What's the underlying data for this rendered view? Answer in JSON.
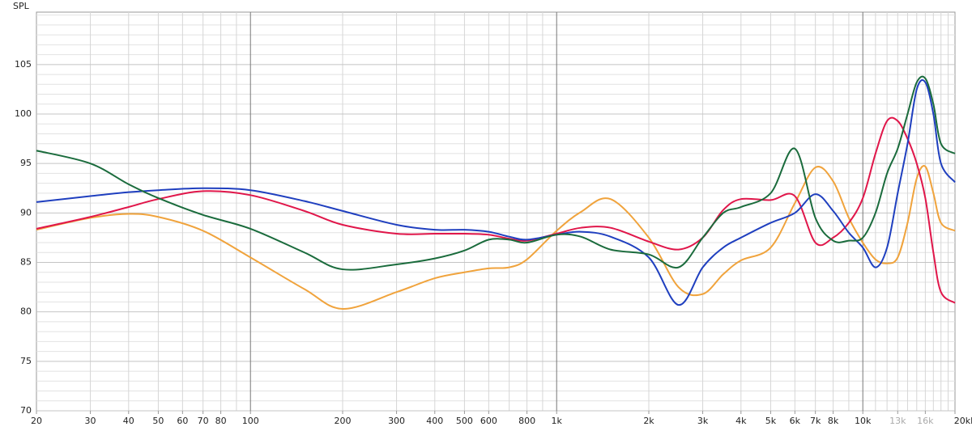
{
  "chart_data": {
    "type": "line",
    "y_label": "SPL",
    "x_log": true,
    "xlim": [
      20,
      20000
    ],
    "ylim": [
      70,
      110.3
    ],
    "xticks": [
      20,
      30,
      40,
      50,
      60,
      70,
      80,
      100,
      200,
      300,
      400,
      500,
      600,
      800,
      {
        "value": 1000,
        "label": "1k"
      },
      {
        "value": 2000,
        "label": "2k"
      },
      {
        "value": 3000,
        "label": "3k"
      },
      {
        "value": 4000,
        "label": "4k"
      },
      {
        "value": 5000,
        "label": "5k"
      },
      {
        "value": 6000,
        "label": "6k"
      },
      {
        "value": 7000,
        "label": "7k"
      },
      {
        "value": 8000,
        "label": "8k"
      },
      {
        "value": 10000,
        "label": "10k"
      },
      {
        "value": 13000,
        "label": "13k",
        "color": "#aaaaaa"
      },
      {
        "value": 16000,
        "label": "16k",
        "color": "#aaaaaa"
      },
      {
        "value": 20000,
        "label": "20kHz"
      }
    ],
    "xmajor": [
      100,
      1000,
      10000
    ],
    "xminor": [
      30,
      40,
      50,
      60,
      70,
      80,
      90,
      200,
      300,
      400,
      500,
      600,
      700,
      800,
      900,
      2000,
      3000,
      4000,
      5000,
      6000,
      7000,
      8000,
      9000,
      11000,
      12000,
      13000,
      14000,
      15000,
      16000,
      17000,
      18000,
      19000
    ],
    "yticks": [
      70,
      75,
      80,
      85,
      90,
      95,
      100,
      105
    ],
    "yminor": [
      71,
      72,
      73,
      74,
      76,
      77,
      78,
      79,
      81,
      82,
      83,
      84,
      86,
      87,
      88,
      89,
      91,
      92,
      93,
      94,
      96,
      97,
      98,
      99,
      101,
      102,
      103,
      104,
      106,
      107,
      108,
      109,
      110
    ],
    "grid": true,
    "x": [
      20,
      30,
      40,
      50,
      70,
      100,
      150,
      200,
      300,
      400,
      500,
      600,
      700,
      800,
      1000,
      1200,
      1500,
      2000,
      2500,
      3000,
      3500,
      4000,
      5000,
      6000,
      7000,
      8000,
      9000,
      10000,
      11000,
      12000,
      13000,
      14000,
      15000,
      16000,
      17000,
      18000,
      20000
    ],
    "series": [
      {
        "color": "#f0a33c",
        "values": [
          88.3,
          89.5,
          89.9,
          89.6,
          88.2,
          85.5,
          82.3,
          80.3,
          82,
          83.4,
          84.0,
          84.4,
          84.5,
          85.3,
          88.2,
          90.1,
          91.4,
          87.5,
          82.5,
          81.8,
          83.8,
          85.2,
          86.5,
          91,
          94.6,
          93.2,
          89.5,
          87,
          85.3,
          84.9,
          85.5,
          89,
          93.5,
          94.7,
          92,
          89,
          88.2
        ]
      },
      {
        "color": "#e0164a",
        "values": [
          88.4,
          89.6,
          90.6,
          91.4,
          92.2,
          91.8,
          90.2,
          88.8,
          87.9,
          87.9,
          87.9,
          87.8,
          87.4,
          87.2,
          87.9,
          88.5,
          88.5,
          87.1,
          86.3,
          87.5,
          90.3,
          91.4,
          91.3,
          91.7,
          87,
          87.5,
          89,
          91.5,
          96,
          99.3,
          99.3,
          97.5,
          95,
          91.5,
          86,
          82,
          80.9
        ]
      },
      {
        "color": "#1f3fbf",
        "values": [
          91.1,
          91.7,
          92.1,
          92.3,
          92.5,
          92.3,
          91.2,
          90.2,
          88.8,
          88.3,
          88.3,
          88.1,
          87.6,
          87.3,
          87.8,
          88.1,
          87.6,
          85.5,
          80.7,
          84.5,
          86.5,
          87.5,
          89,
          90,
          91.9,
          90.2,
          88,
          86.5,
          84.5,
          86.5,
          92,
          97,
          102.5,
          103.2,
          100,
          95,
          93.1
        ]
      },
      {
        "color": "#1a6b3c",
        "values": [
          96.3,
          95.0,
          92.9,
          91.5,
          89.8,
          88.4,
          86,
          84.3,
          84.8,
          85.4,
          86.2,
          87.3,
          87.3,
          87.0,
          87.8,
          87.6,
          86.3,
          85.8,
          84.5,
          87.5,
          90,
          90.6,
          92,
          96.5,
          89.5,
          87.2,
          87.2,
          87.5,
          90,
          94,
          96.5,
          100,
          103.2,
          103.6,
          101,
          97,
          96.0
        ]
      }
    ]
  }
}
